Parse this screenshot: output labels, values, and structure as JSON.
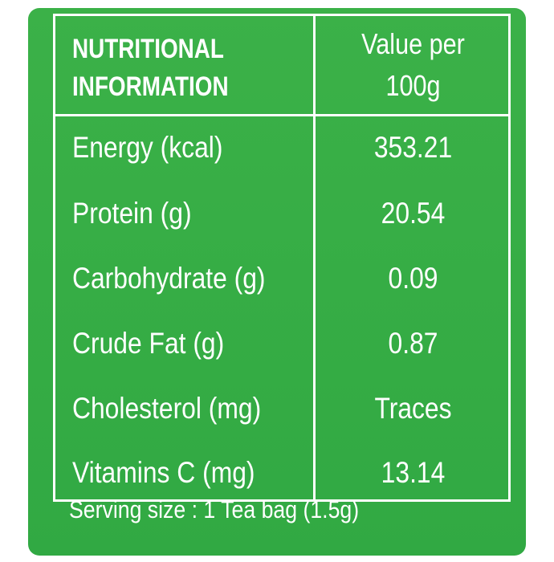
{
  "table": {
    "header_left_line1": "NUTRITIONAL",
    "header_left_line2": "INFORMATION",
    "header_right_line1": "Value per",
    "header_right_line2": "100g",
    "rows": [
      {
        "label": "Energy (kcal)",
        "value": "353.21"
      },
      {
        "label": "Protein (g)",
        "value": "20.54"
      },
      {
        "label": "Carbohydrate (g)",
        "value": "0.09"
      },
      {
        "label": "Crude Fat (g)",
        "value": "0.87"
      },
      {
        "label": "Cholesterol (mg)",
        "value": "Traces"
      },
      {
        "label": "Vitamins C (mg)",
        "value": "13.14"
      }
    ]
  },
  "footer": {
    "serving_size": "Serving size : 1 Tea bag (1.5g)"
  },
  "colors": {
    "panel_green": "#36ad45",
    "text": "#ffffff"
  }
}
